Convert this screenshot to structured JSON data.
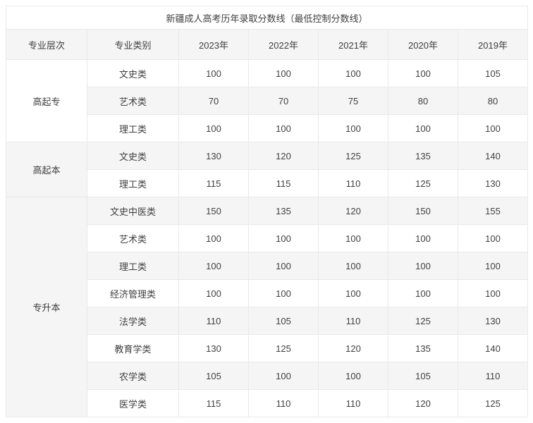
{
  "table": {
    "title": "新疆成人高考历年录取分数线（最低控制分数线）",
    "columns": [
      "专业层次",
      "专业类别",
      "2023年",
      "2022年",
      "2021年",
      "2020年",
      "2019年"
    ],
    "groups": [
      {
        "level": "高起专",
        "rows": [
          {
            "category": "文史类",
            "scores": [
              "100",
              "100",
              "100",
              "100",
              "105"
            ]
          },
          {
            "category": "艺术类",
            "scores": [
              "70",
              "70",
              "75",
              "80",
              "80"
            ]
          },
          {
            "category": "理工类",
            "scores": [
              "100",
              "100",
              "100",
              "100",
              "100"
            ]
          }
        ]
      },
      {
        "level": "高起本",
        "rows": [
          {
            "category": "文史类",
            "scores": [
              "130",
              "120",
              "125",
              "135",
              "140"
            ]
          },
          {
            "category": "理工类",
            "scores": [
              "115",
              "115",
              "110",
              "125",
              "130"
            ]
          }
        ]
      },
      {
        "level": "专升本",
        "rows": [
          {
            "category": "文史中医类",
            "scores": [
              "150",
              "135",
              "120",
              "150",
              "155"
            ]
          },
          {
            "category": "艺术类",
            "scores": [
              "100",
              "100",
              "100",
              "100",
              "100"
            ]
          },
          {
            "category": "理工类",
            "scores": [
              "100",
              "100",
              "100",
              "100",
              "100"
            ]
          },
          {
            "category": "经济管理类",
            "scores": [
              "100",
              "100",
              "100",
              "100",
              "100"
            ]
          },
          {
            "category": "法学类",
            "scores": [
              "110",
              "105",
              "110",
              "125",
              "130"
            ]
          },
          {
            "category": "教育学类",
            "scores": [
              "130",
              "125",
              "120",
              "135",
              "140"
            ]
          },
          {
            "category": "农学类",
            "scores": [
              "105",
              "100",
              "100",
              "105",
              "110"
            ]
          },
          {
            "category": "医学类",
            "scores": [
              "115",
              "110",
              "110",
              "120",
              "125"
            ]
          }
        ]
      }
    ],
    "colors": {
      "stripe_background": "#f5f5f5",
      "border": "#e9e9e9",
      "text": "#404040"
    }
  }
}
